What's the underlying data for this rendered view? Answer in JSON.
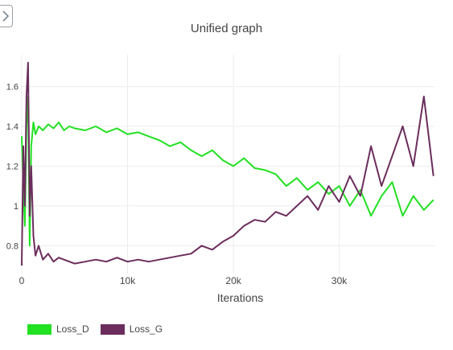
{
  "chart_data": {
    "type": "line",
    "title": "Unified graph",
    "xlabel": "Iterations",
    "ylabel": "",
    "xlim": [
      0,
      39000
    ],
    "ylim": [
      0.66,
      1.76
    ],
    "x_ticks": [
      0,
      10000,
      20000,
      30000
    ],
    "x_tick_labels": [
      "0",
      "10k",
      "20k",
      "30k"
    ],
    "y_ticks": [
      0.8,
      1.0,
      1.2,
      1.4,
      1.6
    ],
    "y_tick_labels": [
      "0.8",
      "1",
      "1.2",
      "1.4",
      "1.6"
    ],
    "grid": true,
    "legend": "bottom-left",
    "series": [
      {
        "name": "Loss_D",
        "color": "#22e022",
        "x": [
          0,
          150,
          300,
          450,
          600,
          750,
          900,
          1100,
          1300,
          1600,
          2000,
          2500,
          3000,
          3500,
          4000,
          4500,
          5000,
          6000,
          7000,
          8000,
          9000,
          10000,
          11000,
          12000,
          13000,
          14000,
          15000,
          16000,
          17000,
          18000,
          19000,
          20000,
          21000,
          22000,
          23000,
          24000,
          25000,
          26000,
          27000,
          28000,
          29000,
          30000,
          31000,
          32000,
          33000,
          34000,
          35000,
          36000,
          37000,
          38000,
          38900
        ],
        "values": [
          1.35,
          1.1,
          0.9,
          1.4,
          1.55,
          0.8,
          1.3,
          1.42,
          1.36,
          1.4,
          1.38,
          1.41,
          1.39,
          1.42,
          1.38,
          1.4,
          1.39,
          1.38,
          1.4,
          1.37,
          1.39,
          1.36,
          1.37,
          1.35,
          1.33,
          1.3,
          1.32,
          1.28,
          1.25,
          1.28,
          1.23,
          1.2,
          1.24,
          1.19,
          1.18,
          1.16,
          1.1,
          1.14,
          1.08,
          1.12,
          1.06,
          1.1,
          1.0,
          1.08,
          0.95,
          1.05,
          1.12,
          0.95,
          1.05,
          0.98,
          1.03
        ]
      },
      {
        "name": "Loss_G",
        "color": "#6b2d5c",
        "x": [
          0,
          150,
          300,
          450,
          600,
          750,
          900,
          1100,
          1300,
          1600,
          2000,
          2500,
          3000,
          3500,
          4000,
          4500,
          5000,
          6000,
          7000,
          8000,
          9000,
          10000,
          11000,
          12000,
          13000,
          14000,
          15000,
          16000,
          17000,
          18000,
          19000,
          20000,
          21000,
          22000,
          23000,
          24000,
          25000,
          26000,
          27000,
          28000,
          29000,
          30000,
          31000,
          32000,
          33000,
          34000,
          35000,
          36000,
          37000,
          38000,
          38900
        ],
        "values": [
          0.7,
          1.3,
          1.0,
          1.55,
          1.72,
          0.95,
          1.2,
          0.85,
          0.75,
          0.8,
          0.73,
          0.76,
          0.72,
          0.74,
          0.73,
          0.72,
          0.71,
          0.72,
          0.73,
          0.72,
          0.74,
          0.72,
          0.73,
          0.72,
          0.73,
          0.74,
          0.75,
          0.76,
          0.8,
          0.78,
          0.82,
          0.85,
          0.9,
          0.93,
          0.92,
          0.97,
          0.95,
          1.0,
          1.05,
          0.98,
          1.1,
          1.02,
          1.15,
          1.05,
          1.3,
          1.1,
          1.25,
          1.4,
          1.2,
          1.55,
          1.15
        ]
      }
    ]
  }
}
